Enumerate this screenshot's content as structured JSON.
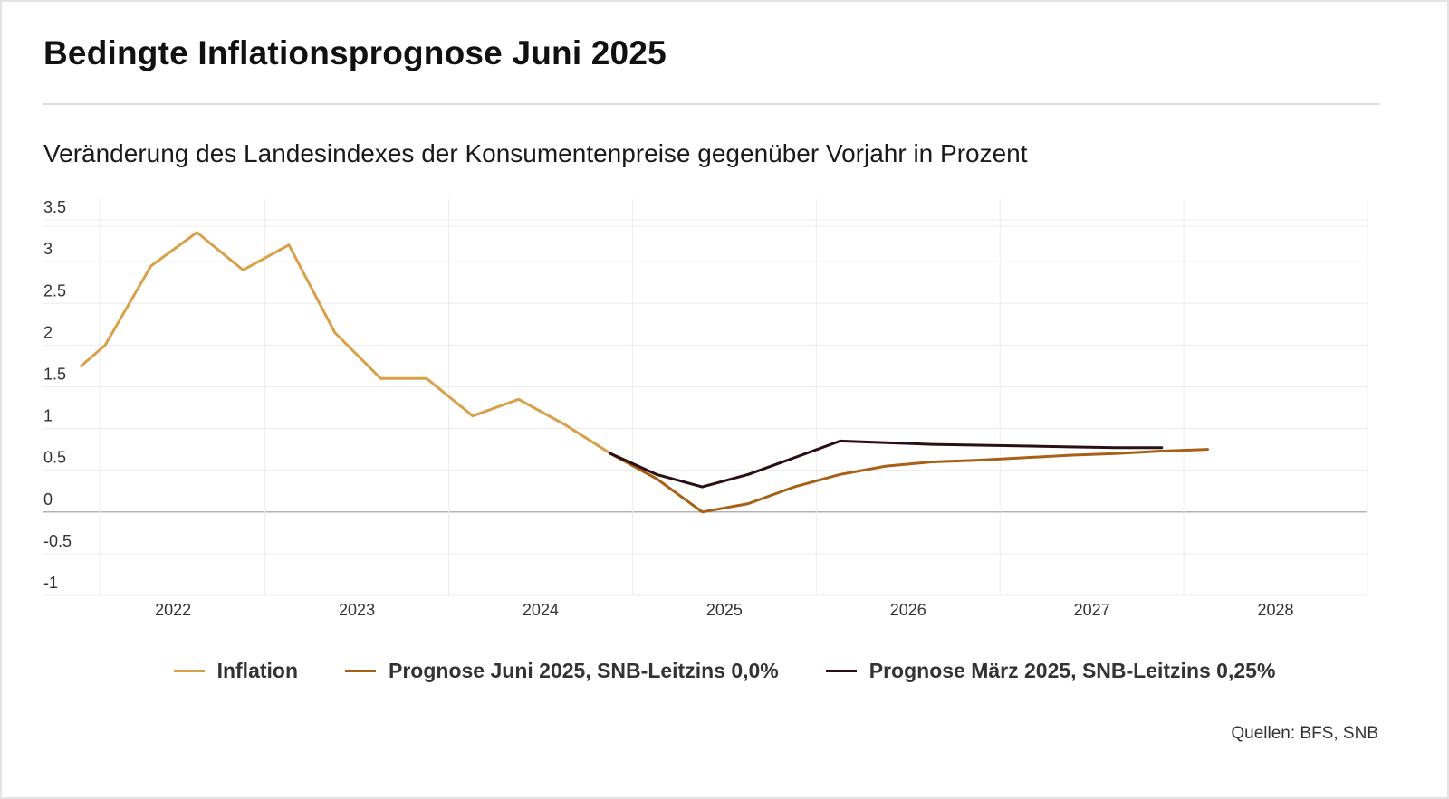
{
  "header": {
    "title": "Bedingte Inflationsprognose Juni 2025",
    "subtitle": "Veränderung des Landesindexes der Konsumentenpreise gegenüber Vorjahr in Prozent"
  },
  "source": "Quellen: BFS, SNB",
  "chart_data": {
    "type": "line",
    "title": "Bedingte Inflationsprognose Juni 2025",
    "subtitle": "Veränderung des Landesindexes der Konsumentenpreise gegenüber Vorjahr in Prozent",
    "xlabel": "",
    "ylabel": "",
    "xlim": [
      2021.6,
      2028.5
    ],
    "ylim": [
      -1,
      3.5
    ],
    "y_ticks": [
      3.5,
      3,
      2.5,
      2,
      1.5,
      1,
      0.5,
      0,
      -0.5,
      -1
    ],
    "y_tick_labels": [
      "3.5",
      "3",
      "2.5",
      "2",
      "1.5",
      "1",
      "0.5",
      "0",
      "-0.5",
      "-1"
    ],
    "x_ticks": [
      2022,
      2023,
      2024,
      2025,
      2026,
      2027,
      2028
    ],
    "x_tick_labels": [
      "2022",
      "2023",
      "2024",
      "2025",
      "2026",
      "2027",
      "2028"
    ],
    "grid": true,
    "legend_position": "bottom",
    "series": [
      {
        "name": "Inflation",
        "color": "#d9a04a",
        "x": [
          2021.5,
          2021.63,
          2021.88,
          2022.13,
          2022.38,
          2022.63,
          2022.88,
          2023.13,
          2023.38,
          2023.63,
          2023.88,
          2024.13,
          2024.38,
          2024.63
        ],
        "y": [
          1.75,
          2.0,
          2.95,
          3.35,
          2.9,
          3.2,
          2.15,
          1.6,
          1.6,
          1.15,
          1.35,
          1.05,
          0.7,
          0.4
        ]
      },
      {
        "name": "Prognose Juni 2025, SNB-Leitzins 0,0%",
        "color": "#a85f16",
        "x": [
          2024.38,
          2024.63,
          2024.88,
          2025.13,
          2025.38,
          2025.63,
          2025.88,
          2026.13,
          2026.38,
          2026.63,
          2026.88,
          2027.13,
          2027.38,
          2027.63
        ],
        "y": [
          0.7,
          0.4,
          0.0,
          0.1,
          0.3,
          0.45,
          0.55,
          0.6,
          0.62,
          0.65,
          0.68,
          0.7,
          0.73,
          0.75
        ]
      },
      {
        "name": "Prognose März 2025, SNB-Leitzins 0,25%",
        "color": "#2a1012",
        "x": [
          2024.38,
          2024.63,
          2024.88,
          2025.13,
          2025.38,
          2025.63,
          2025.88,
          2026.13,
          2026.38,
          2026.63,
          2026.88,
          2027.13,
          2027.38
        ],
        "y": [
          0.7,
          0.45,
          0.3,
          0.45,
          0.65,
          0.85,
          0.83,
          0.81,
          0.8,
          0.79,
          0.78,
          0.77,
          0.77
        ]
      }
    ]
  }
}
